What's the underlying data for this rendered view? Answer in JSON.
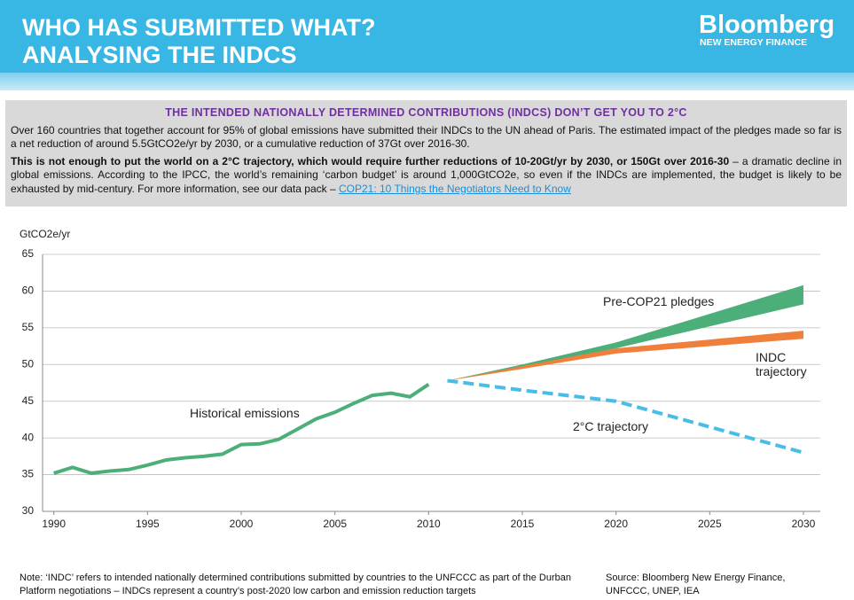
{
  "header": {
    "title_line_1": "WHO HAS SUBMITTED WHAT?",
    "title_line_2": "ANALYSING THE INDCS",
    "brand": "Bloomberg",
    "brand_sub": "NEW ENERGY FINANCE"
  },
  "box": {
    "heading": "THE INTENDED NATIONALLY DETERMINED CONTRIBUTIONS (INDCS) DON’T GET YOU TO 2°C",
    "paragraph_1": "Over 160 countries that together account for 95% of global emissions have submitted their INDCs to the UN ahead of Paris. The estimated impact of the pledges made so far is a net reduction of around 5.5GtCO2e/yr by 2030, or a cumulative reduction of 37Gt over 2016-30.",
    "paragraph_2_bold": "This is not enough to put the world on a 2°C trajectory, which would require further reductions of 10-20Gt/yr by 2030, or 150Gt over 2016-30",
    "paragraph_2": " – a dramatic decline in global emissions. According to the IPCC, the world’s remaining ‘carbon budget’ is around 1,000GtCO2e, so even if the INDCs are implemented, the budget is likely to be exhausted by mid-century. For more information, see our data pack – ",
    "link": "COP21: 10 Things the Negotiators Need to Know"
  },
  "chart_data": {
    "type": "line",
    "y_label": "GtCO2e/yr",
    "xlim": [
      1989.4,
      2030.9
    ],
    "xticks": [
      1990,
      1995,
      2000,
      2005,
      2010,
      2015,
      2020,
      2025,
      2030
    ],
    "ylim": [
      30,
      65
    ],
    "yticks": [
      30,
      35,
      40,
      45,
      50,
      55,
      60,
      65
    ],
    "grid": true,
    "series": [
      {
        "name": "Historical emissions",
        "color": "#4caf7a",
        "style": "solid",
        "x": [
          1990,
          1991,
          1992,
          1993,
          1994,
          1995,
          1996,
          1997,
          1998,
          1999,
          2000,
          2001,
          2002,
          2003,
          2004,
          2005,
          2006,
          2007,
          2008,
          2009,
          2010
        ],
        "values": [
          35.2,
          36.0,
          35.2,
          35.5,
          35.7,
          36.3,
          37.0,
          37.3,
          37.5,
          37.8,
          39.1,
          39.2,
          39.8,
          41.2,
          42.6,
          43.5,
          44.7,
          45.8,
          46.1,
          45.6,
          47.3
        ]
      },
      {
        "name": "Pre-COP21 pledges",
        "color": "#4caf7a",
        "style": "band",
        "x": [
          2010,
          2011,
          2015,
          2020,
          2030
        ],
        "values_low": [
          47.3,
          47.8,
          49.6,
          52.2,
          58.2
        ],
        "values_high": [
          47.3,
          47.8,
          50.0,
          53.0,
          60.8
        ]
      },
      {
        "name": "INDC trajectory",
        "color": "#f07f3c",
        "style": "band",
        "x": [
          2010,
          2011,
          2015,
          2020,
          2030
        ],
        "values_low": [
          47.3,
          47.8,
          49.4,
          51.5,
          53.5
        ],
        "values_high": [
          47.3,
          47.8,
          49.8,
          52.2,
          54.6
        ]
      },
      {
        "name": "2°C trajectory",
        "color": "#48bde6",
        "style": "dashed",
        "x": [
          2011,
          2015,
          2020,
          2025,
          2030
        ],
        "values": [
          47.8,
          46.5,
          45.0,
          41.5,
          38.0
        ]
      }
    ]
  },
  "footer": {
    "note": "Note: ‘INDC’ refers to intended nationally determined contributions submitted by countries to the UNFCCC as part of the Durban Platform negotiations – INDCs represent a country’s post-2020 low carbon and emission reduction targets",
    "source": "Source: Bloomberg New Energy Finance, UNFCCC, UNEP, IEA"
  }
}
